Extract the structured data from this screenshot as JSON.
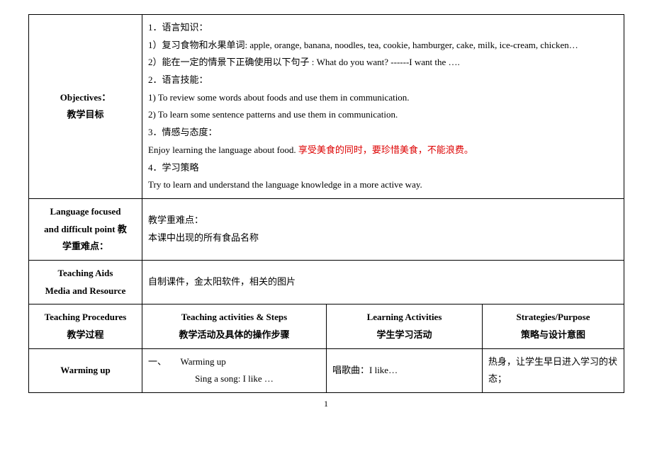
{
  "rows": {
    "objectives": {
      "label_en": "Objectives：",
      "label_cn": "教学目标",
      "c1": "1．语言知识：",
      "c2": "1）复习食物和水果单词: apple, orange, banana, noodles, tea, cookie, hamburger, cake, milk, ice-cream, chicken…",
      "c3": "2）能在一定的情景下正确使用以下句子  : What do you want? ------I want the ….",
      "c4": "2．语言技能：",
      "c5": "1) To review some words about foods and use them in communication.",
      "c6": "2) To learn some sentence patterns and use them in communication.",
      "c7": "3．情感与态度：",
      "c8a": "  Enjoy learning the language about food.  ",
      "c8b": "享受美食的同时，要珍惜美食，不能浪费。",
      "c9": "4．学习策略",
      "c10": "Try to learn and understand the language knowledge in a more active way."
    },
    "focus": {
      "label_l1": "Language focused",
      "label_l2": "and difficult point  教",
      "label_l3": "学重难点：",
      "c1": "教学重难点：",
      "c2": "本课中出现的所有食品名称"
    },
    "aids": {
      "label_l1": "Teaching Aids",
      "label_l2": "Media and Resource",
      "content": "自制课件，金太阳软件，相关的图片"
    },
    "proc": {
      "label_l1": "Teaching    Procedures",
      "label_l2": "教学过程",
      "h1a": "Teaching activities & Steps",
      "h1b": "教学活动及具体的操作步骤",
      "h2a": "Learning Activities",
      "h2b": "学生学习活动",
      "h3a": "Strategies/Purpose",
      "h3b": "策略与设计意图"
    },
    "warm": {
      "label": "Warming up",
      "c1a": "一、　　Warming up",
      "c1b": "Sing a song: I like …",
      "c2": "唱歌曲：I like…",
      "c3": "热身，让学生早日进入学习的状态；"
    }
  },
  "page": "1"
}
